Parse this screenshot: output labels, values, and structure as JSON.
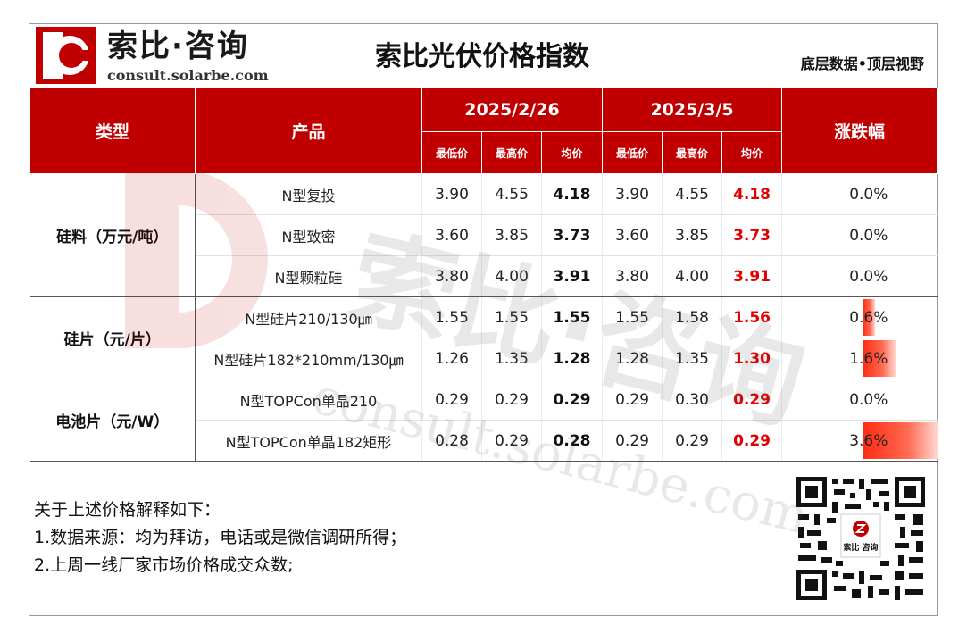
{
  "brand": {
    "name_cn": "索比·咨询",
    "domain": "consult.solarbe.com"
  },
  "title": "索比光伏价格指数",
  "slogan": "底层数据•顶层视野",
  "table": {
    "col_type": "类型",
    "col_product": "产品",
    "date1": "2025/2/26",
    "date2": "2025/3/5",
    "col_change": "涨跌幅",
    "sub_min": "最低价",
    "sub_max": "最高价",
    "sub_avg": "均价",
    "groups": [
      {
        "category": "硅料（万元/吨）",
        "rows": [
          {
            "product": "N型复投",
            "min1": "3.90",
            "max1": "4.55",
            "avg1": "4.18",
            "min2": "3.90",
            "max2": "4.55",
            "avg2": "4.18",
            "change": "0.0%",
            "change_value": 0.0
          },
          {
            "product": "N型致密",
            "min1": "3.60",
            "max1": "3.85",
            "avg1": "3.73",
            "min2": "3.60",
            "max2": "3.85",
            "avg2": "3.73",
            "change": "0.0%",
            "change_value": 0.0
          },
          {
            "product": "N型颗粒硅",
            "min1": "3.80",
            "max1": "4.00",
            "avg1": "3.91",
            "min2": "3.80",
            "max2": "4.00",
            "avg2": "3.91",
            "change": "0.0%",
            "change_value": 0.0
          }
        ]
      },
      {
        "category": "硅片（元/片）",
        "rows": [
          {
            "product": "N型硅片210/130㎛",
            "min1": "1.55",
            "max1": "1.55",
            "avg1": "1.55",
            "min2": "1.55",
            "max2": "1.58",
            "avg2": "1.56",
            "change": "0.6%",
            "change_value": 0.6
          },
          {
            "product": "N型硅片182*210mm/130㎛",
            "min1": "1.26",
            "max1": "1.35",
            "avg1": "1.28",
            "min2": "1.28",
            "max2": "1.35",
            "avg2": "1.30",
            "change": "1.6%",
            "change_value": 1.6
          }
        ]
      },
      {
        "category": "电池片（元/W）",
        "rows": [
          {
            "product": "N型TOPCon单晶210",
            "min1": "0.29",
            "max1": "0.29",
            "avg1": "0.29",
            "min2": "0.29",
            "max2": "0.30",
            "avg2": "0.29",
            "change": "0.0%",
            "change_value": 0.0
          },
          {
            "product": "N型TOPCon单晶182矩形",
            "min1": "0.28",
            "max1": "0.29",
            "avg1": "0.28",
            "min2": "0.29",
            "max2": "0.29",
            "avg2": "0.29",
            "change": "3.6%",
            "change_value": 3.6
          }
        ]
      }
    ]
  },
  "watermark": {
    "cn": "索比·咨询",
    "en": "consult.solarbe.com"
  },
  "qr_label": "索比 咨询",
  "notes": {
    "heading": "关于上述价格解释如下：",
    "line1": "1.数据来源：均为拜访，电话或是微信调研所得；",
    "line2": "2.上周一线厂家市场价格成交众数;"
  },
  "colors": {
    "brand_red": "#c00000",
    "up_red": "#e00000"
  }
}
